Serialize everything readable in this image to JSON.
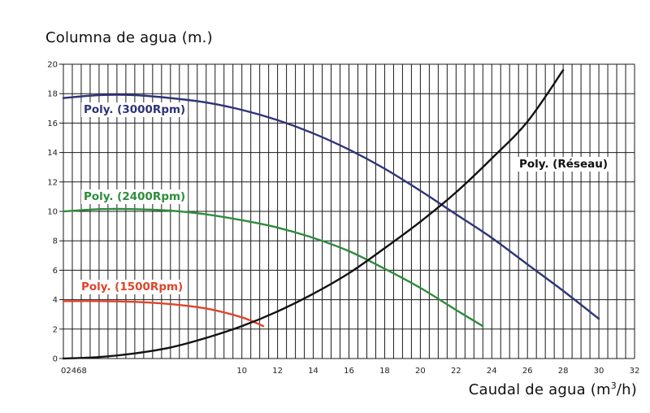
{
  "chart_data": {
    "type": "line",
    "ylabel": "Columna de agua (m.)",
    "xlabel_main": "Caudal de agua (m",
    "xlabel_sup": "3",
    "xlabel_tail": "/h)",
    "xlim": [
      0,
      32
    ],
    "ylim": [
      0,
      20
    ],
    "x_tick_labels_text": "02468",
    "x_ticks": [
      10,
      12,
      14,
      16,
      18,
      20,
      22,
      24,
      26,
      28,
      30,
      32
    ],
    "y_ticks": [
      0,
      2,
      4,
      6,
      8,
      10,
      12,
      14,
      16,
      18,
      20
    ],
    "grid": true,
    "series": [
      {
        "name": "Poly. (3000Rpm)",
        "color": "#2e3477",
        "x": [
          0,
          2,
          4,
          6,
          8,
          10,
          12,
          14,
          16,
          18,
          20,
          22,
          24,
          26,
          28,
          30
        ],
        "y": [
          17.7,
          17.9,
          17.9,
          17.7,
          17.4,
          16.9,
          16.2,
          15.3,
          14.2,
          12.9,
          11.4,
          9.8,
          8.2,
          6.4,
          4.6,
          2.7
        ]
      },
      {
        "name": "Poly. (2400Rpm)",
        "color": "#2e8c3c",
        "x": [
          0,
          2,
          4,
          6,
          8,
          10,
          12,
          14,
          16,
          18,
          20,
          22,
          23.5
        ],
        "y": [
          10.0,
          10.15,
          10.15,
          10.05,
          9.8,
          9.4,
          8.9,
          8.2,
          7.3,
          6.1,
          4.8,
          3.3,
          2.2
        ]
      },
      {
        "name": "Poly. (1500Rpm)",
        "color": "#e0442a",
        "x": [
          0,
          2,
          4,
          6,
          8,
          10,
          11.2
        ],
        "y": [
          3.9,
          3.9,
          3.85,
          3.7,
          3.4,
          2.8,
          2.2
        ]
      },
      {
        "name": "Poly. (Réseau)",
        "color": "#111111",
        "x": [
          0,
          2,
          4,
          6,
          8,
          10,
          12,
          14,
          16,
          18,
          20,
          22,
          24,
          26,
          28
        ],
        "y": [
          0.0,
          0.1,
          0.35,
          0.75,
          1.4,
          2.2,
          3.2,
          4.4,
          5.8,
          7.5,
          9.3,
          11.3,
          13.6,
          16.1,
          19.6
        ]
      }
    ]
  }
}
